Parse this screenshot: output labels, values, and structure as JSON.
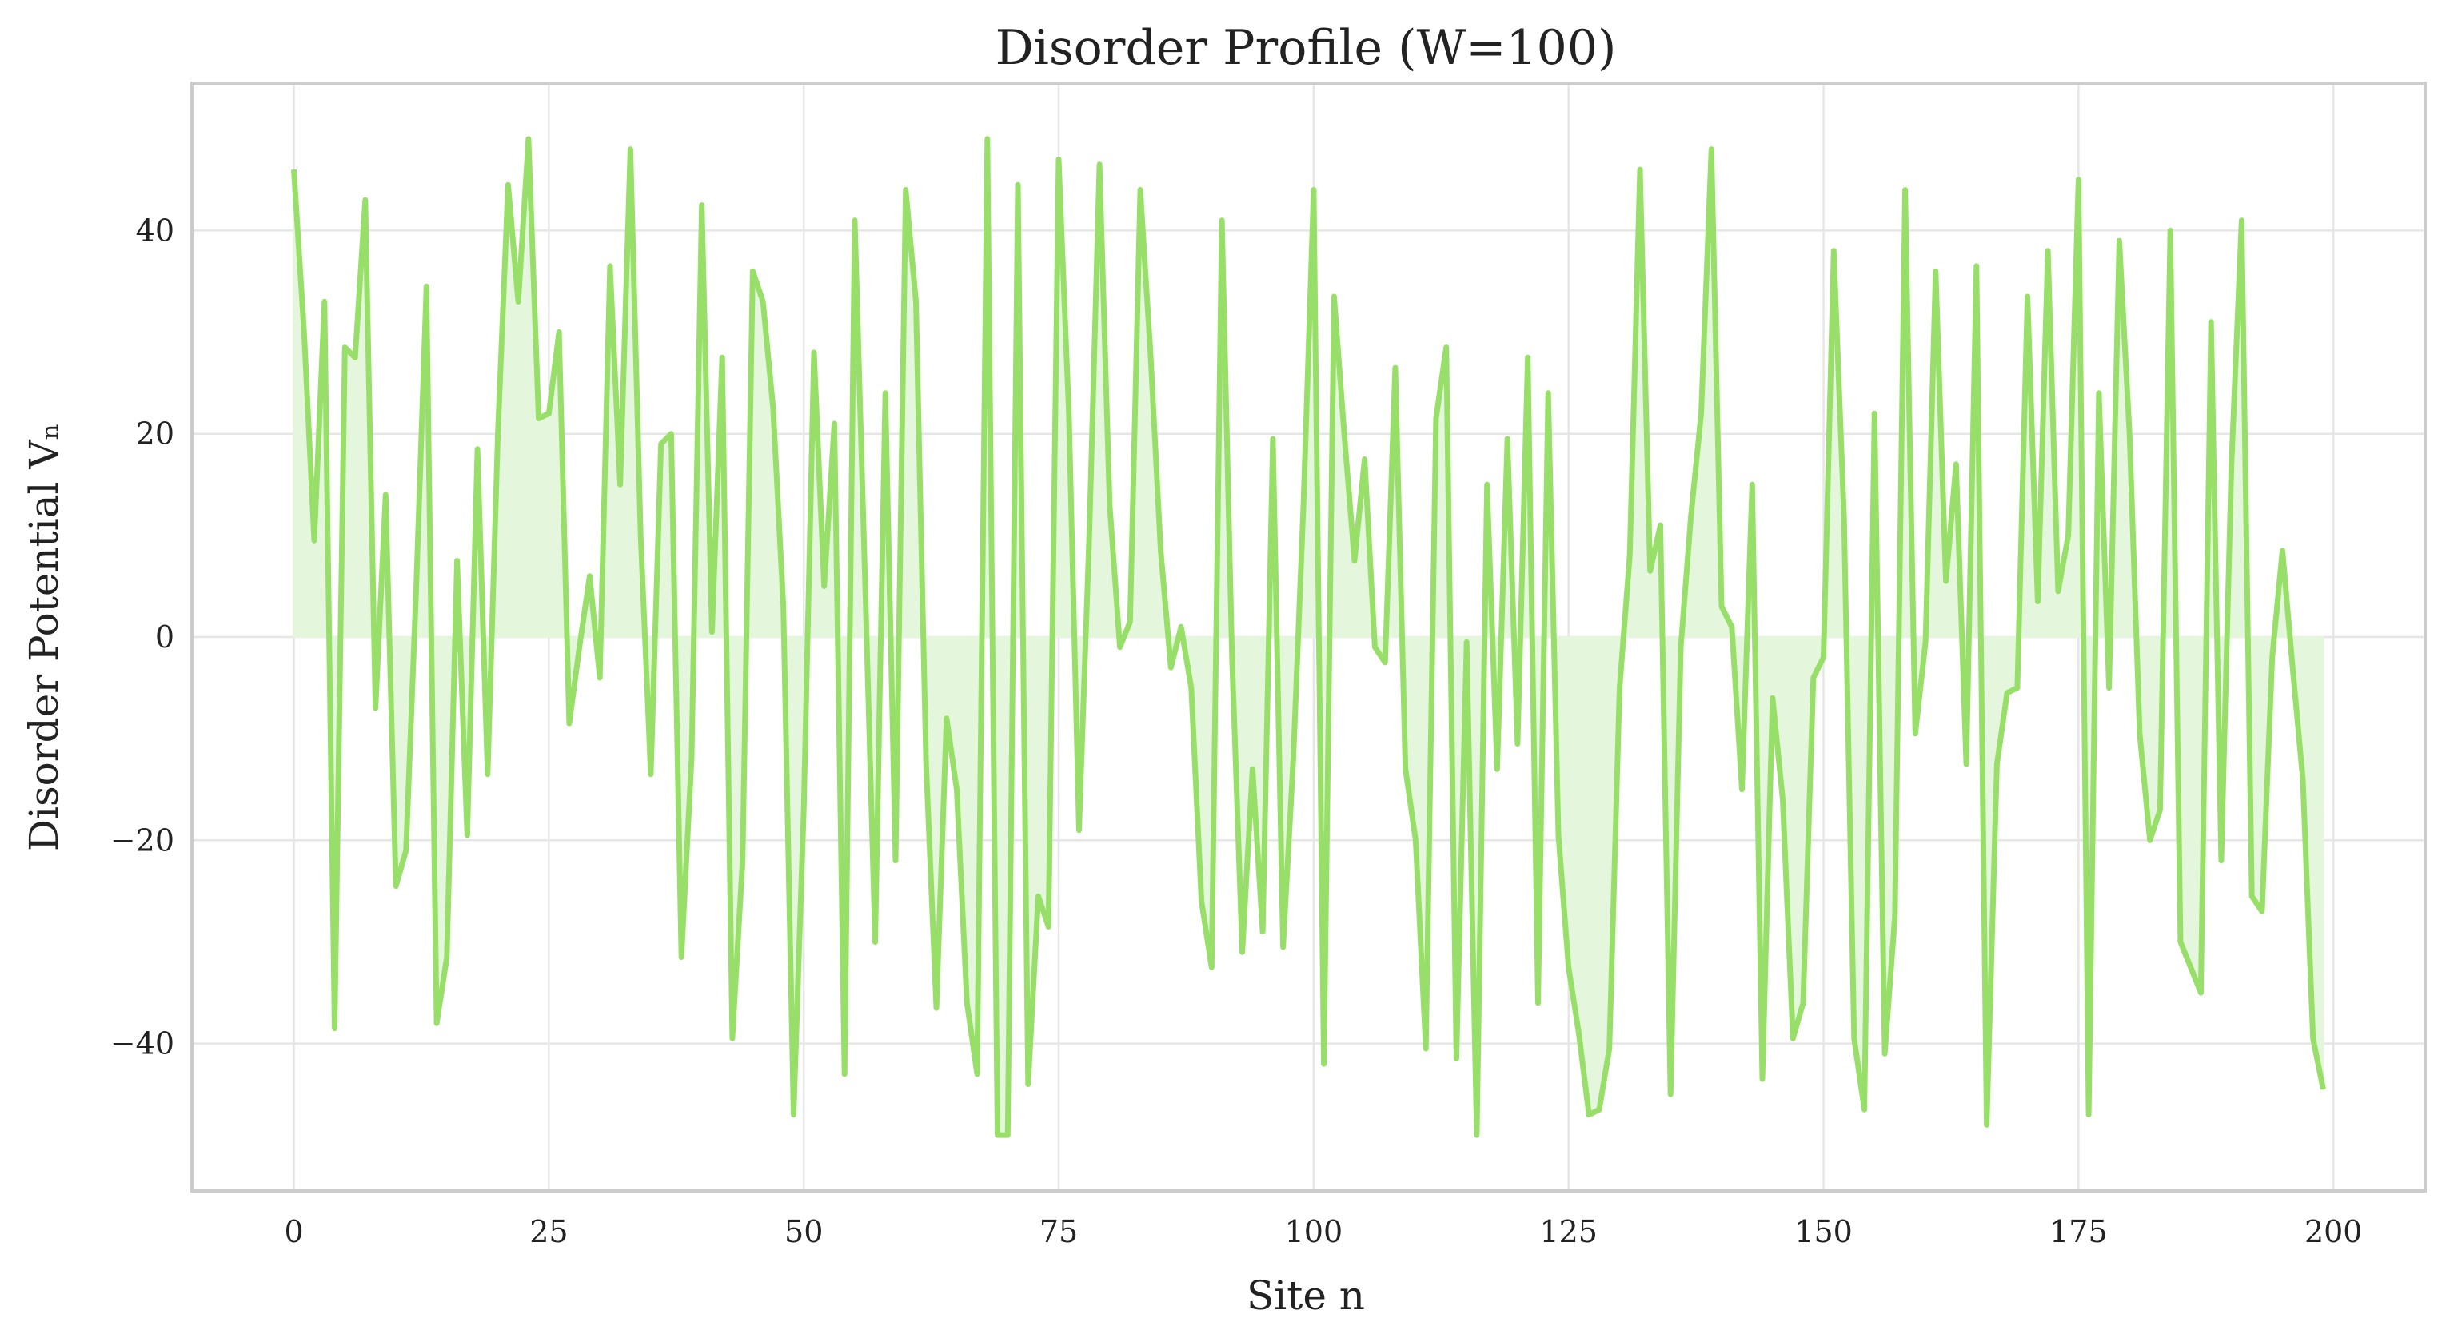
{
  "chart_data": {
    "type": "area",
    "title": "Disorder Profile (W=100)",
    "xlabel": "Site n",
    "ylabel": "Disorder Potential Vₙ",
    "xlim": [
      -10,
      209
    ],
    "ylim": [
      -54.5,
      54.5
    ],
    "xticks": [
      0,
      25,
      50,
      75,
      100,
      125,
      150,
      175,
      200
    ],
    "yticks": [
      -40,
      -20,
      0,
      20,
      40
    ],
    "ytick_labels": [
      "−40",
      "−20",
      "0",
      "20",
      "40"
    ],
    "grid": true,
    "legend": "none",
    "line_color": "#98df6a",
    "fill_color": "#e4f6dc",
    "series": [
      {
        "x_start": 0,
        "x_step": 1,
        "values": [
          46,
          30,
          9.5,
          33,
          -38.5,
          28.5,
          27.5,
          43,
          -7,
          14,
          -24.5,
          -21,
          5,
          34.5,
          -38,
          -31.5,
          7.5,
          -19.5,
          18.5,
          -13.5,
          20,
          44.5,
          33,
          49,
          21.5,
          22,
          30,
          -8.5,
          -1,
          6,
          -4,
          36.5,
          15,
          48,
          10,
          -13.5,
          19,
          20,
          -31.5,
          -12,
          42.5,
          0.5,
          27.5,
          -39.5,
          -22,
          36,
          33,
          22.5,
          3,
          -47,
          -17,
          28,
          5,
          21,
          -43,
          41,
          6,
          -30,
          24,
          -22,
          44,
          33,
          -12.5,
          -36.5,
          -8,
          -15,
          -36,
          -43,
          49,
          -49,
          -49,
          44.5,
          -44,
          -25.5,
          -28.5,
          47,
          22,
          -19,
          10,
          46.5,
          13,
          -1,
          1.5,
          44,
          28,
          8.5,
          -3,
          1,
          -5,
          -26,
          -32.5,
          41,
          -2,
          -31,
          -13,
          -29,
          19.5,
          -30.5,
          -12,
          13,
          44,
          -42,
          33.5,
          20,
          7.5,
          17.5,
          -1,
          -2.5,
          26.5,
          -13,
          -20,
          -40.5,
          21.5,
          28.5,
          -41.5,
          -0.5,
          -49,
          15,
          -13,
          19.5,
          -10.5,
          27.5,
          -36,
          24,
          -19.5,
          -32.5,
          -39,
          -47,
          -46.5,
          -40.5,
          -5,
          8,
          46,
          6.5,
          11,
          -45,
          -1,
          12,
          22,
          48,
          3,
          1,
          -15,
          15,
          -43.5,
          -6,
          -16,
          -39.5,
          -36,
          -4,
          -2,
          38,
          12,
          -39.5,
          -46.5,
          22,
          -41,
          -27.5,
          44,
          -9.5,
          -0.5,
          36,
          5.5,
          17,
          -12.5,
          36.5,
          -48,
          -12.5,
          -5.5,
          -5,
          33.5,
          3.5,
          38,
          4.5,
          10,
          45,
          -47,
          24,
          -5,
          39,
          20,
          -9.5,
          -20,
          -17,
          40,
          -30,
          -32.5,
          -35,
          31,
          -22,
          17,
          41,
          -25.5,
          -27,
          -2,
          8.5,
          -3,
          -14,
          -39.5,
          -44.5
        ]
      }
    ]
  }
}
